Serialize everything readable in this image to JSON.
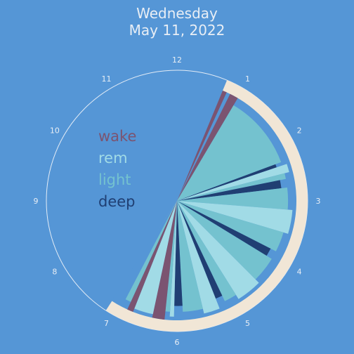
{
  "title_line1": "Wednesday",
  "title_line2": "May 11, 2022",
  "colors": {
    "wake": "#7b5471",
    "rem": "#a1dbe6",
    "light": "#74c2cf",
    "deep": "#203f73",
    "band": "#f1e6d6",
    "clock_line": "#e3ecf6",
    "hour_label": "#e8eef5",
    "background": "#5596d6"
  },
  "legend": [
    {
      "key": "wake",
      "label": "wake"
    },
    {
      "key": "rem",
      "label": "rem"
    },
    {
      "key": "light",
      "label": "light"
    },
    {
      "key": "deep",
      "label": "deep"
    }
  ],
  "chart_data": {
    "type": "polar-bar",
    "clock": "12-hour",
    "hour_labels": [
      "12",
      "1",
      "2",
      "3",
      "4",
      "5",
      "6",
      "7",
      "8",
      "9",
      "10",
      "11"
    ],
    "sleep_window": {
      "start_hour": 0.75,
      "end_hour": 7.1
    },
    "segments": [
      {
        "stage": "wake",
        "start": 0.75,
        "end": 0.82
      },
      {
        "stage": "wake",
        "start": 0.88,
        "end": 1.02
      },
      {
        "stage": "light",
        "start": 1.02,
        "end": 2.32
      },
      {
        "stage": "deep",
        "start": 2.32,
        "end": 2.38
      },
      {
        "stage": "rem",
        "start": 2.38,
        "end": 2.52
      },
      {
        "stage": "light",
        "start": 2.52,
        "end": 2.62
      },
      {
        "stage": "deep",
        "start": 2.62,
        "end": 2.77
      },
      {
        "stage": "light",
        "start": 2.77,
        "end": 3.15
      },
      {
        "stage": "rem",
        "start": 3.15,
        "end": 3.55
      },
      {
        "stage": "light",
        "start": 3.55,
        "end": 3.9
      },
      {
        "stage": "deep",
        "start": 3.9,
        "end": 4.05
      },
      {
        "stage": "light",
        "start": 4.05,
        "end": 4.5
      },
      {
        "stage": "rem",
        "start": 4.5,
        "end": 4.93
      },
      {
        "stage": "light",
        "start": 4.93,
        "end": 5.15
      },
      {
        "stage": "deep",
        "start": 5.15,
        "end": 5.28
      },
      {
        "stage": "rem",
        "start": 5.28,
        "end": 5.55
      },
      {
        "stage": "light",
        "start": 5.55,
        "end": 5.9
      },
      {
        "stage": "deep",
        "start": 5.9,
        "end": 6.05
      },
      {
        "stage": "rem",
        "start": 6.05,
        "end": 6.12
      },
      {
        "stage": "light",
        "start": 6.12,
        "end": 6.2
      },
      {
        "stage": "wake",
        "start": 6.2,
        "end": 6.4
      },
      {
        "stage": "rem",
        "start": 6.4,
        "end": 6.72
      },
      {
        "stage": "wake",
        "start": 6.72,
        "end": 6.82
      },
      {
        "stage": "light",
        "start": 6.82,
        "end": 6.92
      }
    ],
    "stage_radius_fraction": {
      "wake": 1.0,
      "deep": 0.88,
      "light": 0.93,
      "rem": 0.97
    }
  }
}
